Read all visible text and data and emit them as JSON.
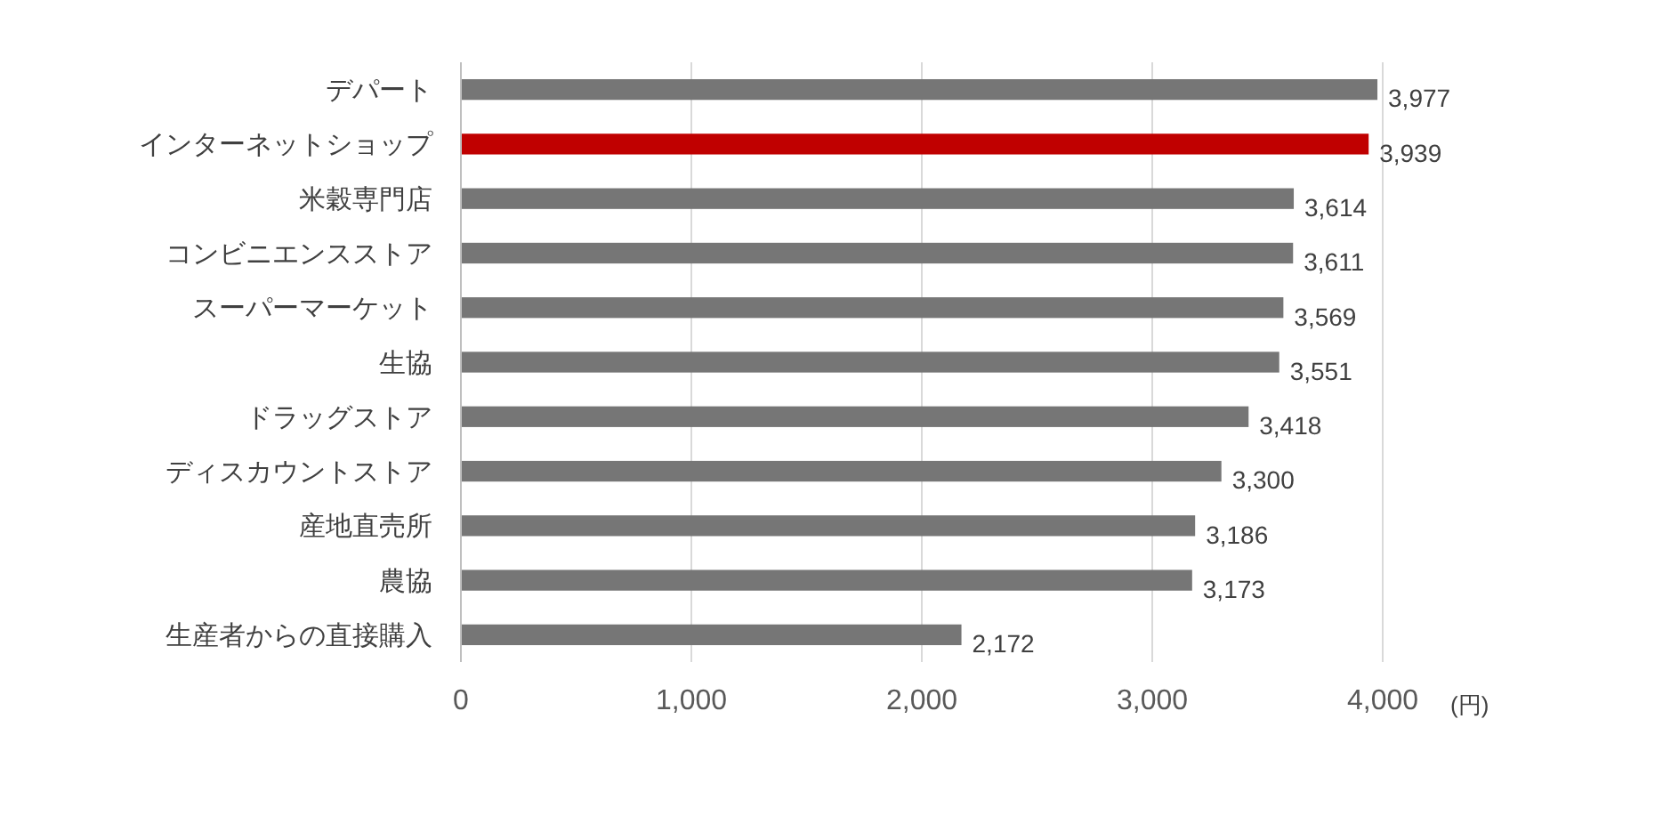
{
  "chart_data": {
    "type": "bar",
    "orientation": "horizontal",
    "xlabel": "(円)",
    "categories": [
      "デパート",
      "インターネットショップ",
      "米穀専門店",
      "コンビニエンスストア",
      "スーパーマーケット",
      "生協",
      "ドラッグストア",
      "ディスカウントストア",
      "産地直売所",
      "農協",
      "生産者からの直接購入"
    ],
    "values": [
      3977,
      3939,
      3614,
      3611,
      3569,
      3551,
      3418,
      3300,
      3186,
      3173,
      2172
    ],
    "colors": [
      "#767676",
      "#c00000",
      "#767676",
      "#767676",
      "#767676",
      "#767676",
      "#767676",
      "#767676",
      "#767676",
      "#767676",
      "#767676"
    ],
    "xlim": [
      0,
      4000
    ],
    "xticks": [
      0,
      {
        "value": 1000,
        "label": "1,000"
      },
      {
        "value": 2000,
        "label": "2,000"
      },
      {
        "value": 3000,
        "label": "3,000"
      },
      {
        "value": 4000,
        "label": "4,000"
      }
    ],
    "value_labels": [
      "3,977",
      "3,939",
      "3,614",
      "3,611",
      "3,569",
      "3,551",
      "3,418",
      "3,300",
      "3,186",
      "3,173",
      "2,172"
    ],
    "grid": "x"
  }
}
